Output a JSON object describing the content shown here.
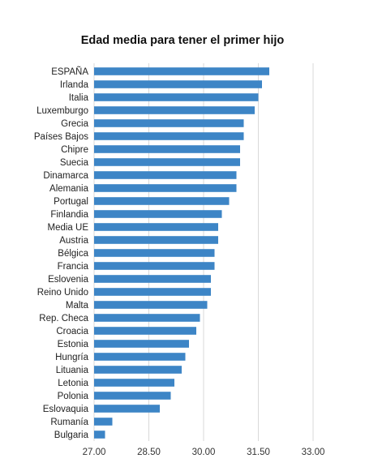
{
  "chart_data": {
    "type": "bar",
    "orientation": "horizontal",
    "title": "Edad media para tener el primer hijo",
    "xlabel": "",
    "ylabel": "",
    "categories": [
      "ESPAÑA",
      "Irlanda",
      "Italia",
      "Luxemburgo",
      "Grecia",
      "Países Bajos",
      "Chipre",
      "Suecia",
      "Dinamarca",
      "Alemania",
      "Portugal",
      "Finlandia",
      "Media UE",
      "Austria",
      "Bélgica",
      "Francia",
      "Eslovenia",
      "Reino Unido",
      "Malta",
      "Rep. Checa",
      "Croacia",
      "Estonia",
      "Hungría",
      "Lituania",
      "Letonia",
      "Polonia",
      "Eslovaquia",
      "Rumanía",
      "Bulgaria"
    ],
    "values": [
      31.8,
      31.6,
      31.5,
      31.4,
      31.1,
      31.1,
      31.0,
      31.0,
      30.9,
      30.9,
      30.7,
      30.5,
      30.4,
      30.4,
      30.3,
      30.3,
      30.2,
      30.2,
      30.1,
      29.9,
      29.8,
      29.6,
      29.5,
      29.4,
      29.2,
      29.1,
      28.8,
      27.5,
      27.3
    ],
    "xlim": [
      27.0,
      33.0
    ],
    "ticks": [
      "27.00",
      "28.50",
      "30.00",
      "31.50",
      "33.00"
    ],
    "tick_values": [
      27.0,
      28.5,
      30.0,
      31.5,
      33.0
    ],
    "grid": true,
    "bar_color": "#3d85c6",
    "grid_color": "#d9d9d9"
  }
}
